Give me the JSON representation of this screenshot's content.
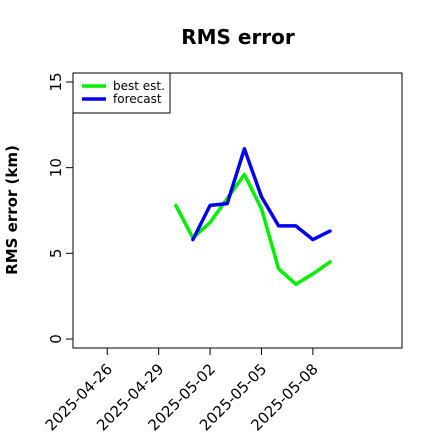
{
  "chart_data": {
    "type": "line",
    "title": "RMS error",
    "xlabel": "",
    "ylabel": "RMS error (km)",
    "x_tick_labels": [
      "2025-04-26",
      "2025-04-29",
      "2025-05-02",
      "2025-05-05",
      "2025-05-08"
    ],
    "x_tick_positions": [
      0,
      3,
      6,
      9,
      12
    ],
    "xlim": [
      -2,
      17.2
    ],
    "ylim": [
      -0.5,
      15.5
    ],
    "y_ticks": [
      0,
      5,
      10,
      15
    ],
    "y_tick_labels": [
      "0",
      "5",
      "10",
      "15"
    ],
    "grid": false,
    "legend_position": "top-left",
    "series": [
      {
        "name": "best est.",
        "color": "#00ee00",
        "x": [
          4,
          5,
          6,
          7,
          8,
          9,
          10,
          11,
          12,
          13
        ],
        "y": [
          7.8,
          5.9,
          6.8,
          8.2,
          9.6,
          7.6,
          4.1,
          3.2,
          3.8,
          4.5
        ]
      },
      {
        "name": "forecast",
        "color": "#0000ee",
        "x": [
          5,
          6,
          7,
          8,
          9,
          10,
          11,
          12,
          13
        ],
        "y": [
          5.8,
          7.8,
          7.9,
          11.1,
          8.3,
          6.6,
          6.6,
          5.8,
          6.3
        ]
      }
    ]
  }
}
